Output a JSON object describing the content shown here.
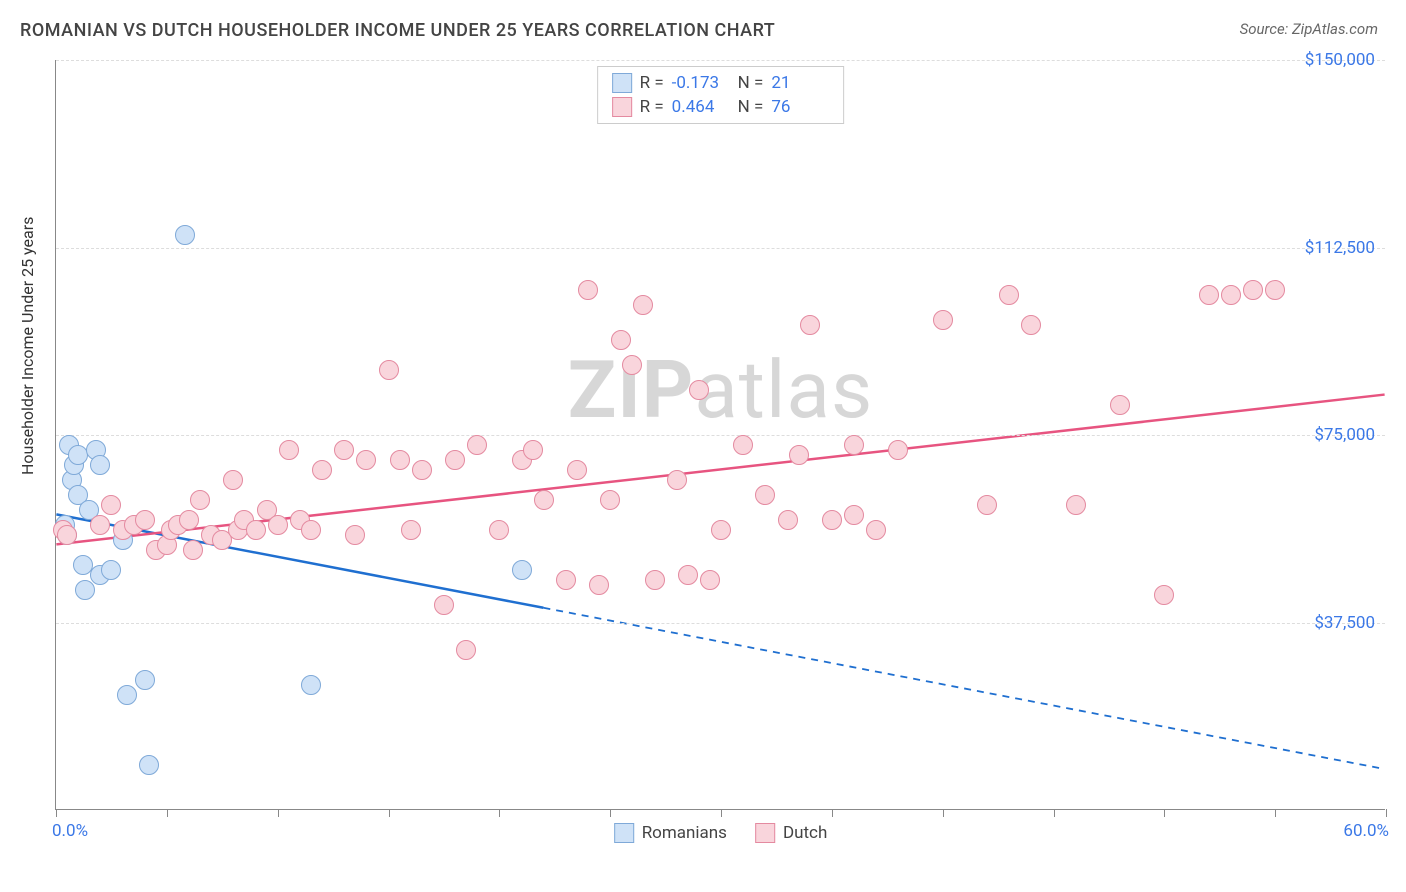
{
  "title": "ROMANIAN VS DUTCH HOUSEHOLDER INCOME UNDER 25 YEARS CORRELATION CHART",
  "source": "Source: ZipAtlas.com",
  "ylabel": "Householder Income Under 25 years",
  "watermark_left": "ZIP",
  "watermark_right": "atlas",
  "chart": {
    "type": "scatter",
    "xlim": [
      0,
      60
    ],
    "ylim": [
      0,
      150000
    ],
    "x_min_label": "0.0%",
    "x_max_label": "60.0%",
    "x_ticks": [
      0,
      5,
      10,
      15,
      20,
      25,
      30,
      35,
      40,
      45,
      50,
      55,
      60
    ],
    "y_ticks": [
      37500,
      75000,
      112500,
      150000
    ],
    "y_tick_labels": [
      "$37,500",
      "$75,000",
      "$112,500",
      "$150,000"
    ],
    "grid_color": "#dddddd",
    "background_color": "#ffffff",
    "series": [
      {
        "name": "Romanians",
        "fill": "#cfe2f7",
        "stroke": "#7fa9d8",
        "line_color": "#1f6fd0",
        "R_label": "R = ",
        "R": "-0.173",
        "N_label": "N = ",
        "N": "21",
        "trend": {
          "y_at_x0": 59000,
          "y_at_x60": 8000,
          "solid_until_x": 22
        },
        "points": [
          [
            0.4,
            57000
          ],
          [
            0.5,
            55000
          ],
          [
            0.6,
            73000
          ],
          [
            0.7,
            66000
          ],
          [
            0.8,
            69000
          ],
          [
            1.0,
            71000
          ],
          [
            1.0,
            63000
          ],
          [
            1.2,
            49000
          ],
          [
            1.3,
            44000
          ],
          [
            1.5,
            60000
          ],
          [
            1.8,
            72000
          ],
          [
            2.0,
            69000
          ],
          [
            2.0,
            47000
          ],
          [
            2.5,
            48000
          ],
          [
            3.0,
            54000
          ],
          [
            3.2,
            23000
          ],
          [
            4.0,
            26000
          ],
          [
            4.2,
            9000
          ],
          [
            5.8,
            115000
          ],
          [
            11.5,
            25000
          ],
          [
            21.0,
            48000
          ]
        ]
      },
      {
        "name": "Dutch",
        "fill": "#f9d5dc",
        "stroke": "#e48aa0",
        "line_color": "#e75480",
        "R_label": "R = ",
        "R": "0.464",
        "N_label": "N = ",
        "N": "76",
        "trend": {
          "y_at_x0": 53000,
          "y_at_x60": 83000,
          "solid_until_x": 60
        },
        "points": [
          [
            0.3,
            56000
          ],
          [
            0.5,
            55000
          ],
          [
            2.0,
            57000
          ],
          [
            2.5,
            61000
          ],
          [
            3.0,
            56000
          ],
          [
            3.5,
            57000
          ],
          [
            4.0,
            58000
          ],
          [
            4.5,
            52000
          ],
          [
            5.0,
            53000
          ],
          [
            5.2,
            56000
          ],
          [
            5.5,
            57000
          ],
          [
            6.0,
            58000
          ],
          [
            6.2,
            52000
          ],
          [
            6.5,
            62000
          ],
          [
            7.0,
            55000
          ],
          [
            7.5,
            54000
          ],
          [
            8.0,
            66000
          ],
          [
            8.2,
            56000
          ],
          [
            8.5,
            58000
          ],
          [
            9.0,
            56000
          ],
          [
            9.5,
            60000
          ],
          [
            10.0,
            57000
          ],
          [
            10.5,
            72000
          ],
          [
            11.0,
            58000
          ],
          [
            11.5,
            56000
          ],
          [
            12.0,
            68000
          ],
          [
            13.0,
            72000
          ],
          [
            13.5,
            55000
          ],
          [
            14.0,
            70000
          ],
          [
            15.0,
            88000
          ],
          [
            15.5,
            70000
          ],
          [
            16.0,
            56000
          ],
          [
            16.5,
            68000
          ],
          [
            17.5,
            41000
          ],
          [
            18.0,
            70000
          ],
          [
            18.5,
            32000
          ],
          [
            19.0,
            73000
          ],
          [
            20.0,
            56000
          ],
          [
            21.0,
            70000
          ],
          [
            21.5,
            72000
          ],
          [
            22.0,
            62000
          ],
          [
            23.0,
            46000
          ],
          [
            23.5,
            68000
          ],
          [
            24.0,
            104000
          ],
          [
            24.5,
            45000
          ],
          [
            25.0,
            62000
          ],
          [
            25.5,
            94000
          ],
          [
            26.0,
            89000
          ],
          [
            26.5,
            101000
          ],
          [
            27.0,
            46000
          ],
          [
            28.0,
            66000
          ],
          [
            28.5,
            47000
          ],
          [
            29.0,
            84000
          ],
          [
            29.5,
            46000
          ],
          [
            30.0,
            56000
          ],
          [
            31.0,
            73000
          ],
          [
            32.0,
            63000
          ],
          [
            33.0,
            58000
          ],
          [
            33.5,
            71000
          ],
          [
            34.0,
            97000
          ],
          [
            35.0,
            58000
          ],
          [
            36.0,
            73000
          ],
          [
            37.0,
            56000
          ],
          [
            38.0,
            72000
          ],
          [
            40.0,
            98000
          ],
          [
            42.0,
            61000
          ],
          [
            43.0,
            103000
          ],
          [
            44.0,
            97000
          ],
          [
            46.0,
            61000
          ],
          [
            48.0,
            81000
          ],
          [
            50.0,
            43000
          ],
          [
            52.0,
            103000
          ],
          [
            53.0,
            103000
          ],
          [
            54.0,
            104000
          ],
          [
            55.0,
            104000
          ],
          [
            36.0,
            59000
          ]
        ]
      }
    ],
    "legend": [
      "Romanians",
      "Dutch"
    ]
  }
}
